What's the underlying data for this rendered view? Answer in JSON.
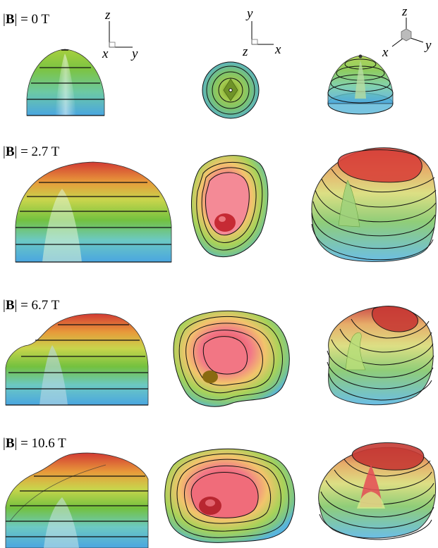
{
  "panels": [
    {
      "label": "= 0 T"
    },
    {
      "label": "= 2.7 T"
    },
    {
      "label": "= 6.7 T"
    },
    {
      "label": "= 10.6 T"
    }
  ],
  "field_symbol": "B",
  "axes": {
    "side": {
      "vertical": "z",
      "origin": "x",
      "horizontal": "y"
    },
    "top": {
      "vertical": "y",
      "origin": "z",
      "horizontal": "x"
    },
    "persp": {
      "vertical": "z",
      "left": "x",
      "right": "y"
    }
  },
  "colors": {
    "blue": "#56b4e6",
    "green": "#5fbf3c",
    "yellow": "#e7d25a",
    "orange": "#e69b3c",
    "red": "#d43b36",
    "pink": "#f06a7a",
    "contour": "#111111"
  }
}
